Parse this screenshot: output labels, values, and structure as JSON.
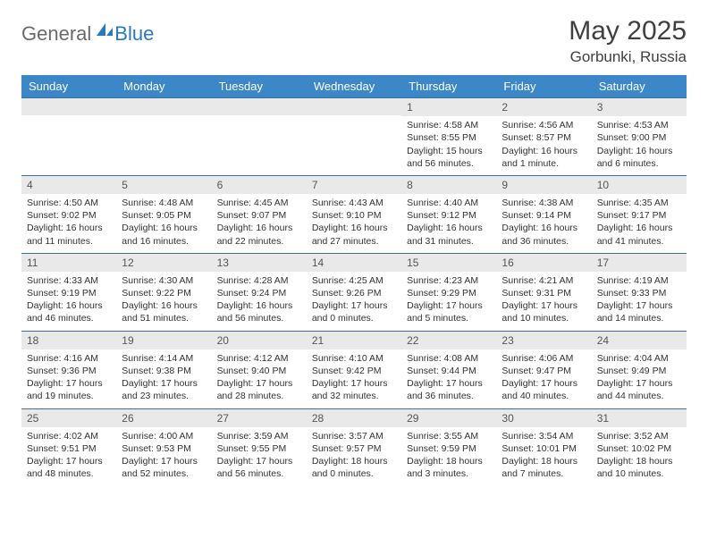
{
  "logo": {
    "part1": "General",
    "part2": "Blue"
  },
  "title": "May 2025",
  "location": "Gorbunki, Russia",
  "colors": {
    "header_bg": "#3b87c8",
    "header_fg": "#ffffff",
    "daynum_bg": "#e9e9e9",
    "row_border": "#3b6fa0",
    "logo_gray": "#6a6a6a",
    "logo_blue": "#2a7ab8",
    "text": "#333333"
  },
  "dayNames": [
    "Sunday",
    "Monday",
    "Tuesday",
    "Wednesday",
    "Thursday",
    "Friday",
    "Saturday"
  ],
  "weeks": [
    [
      null,
      null,
      null,
      null,
      {
        "d": "1",
        "sr": "4:58 AM",
        "ss": "8:55 PM",
        "dl": "15 hours and 56 minutes."
      },
      {
        "d": "2",
        "sr": "4:56 AM",
        "ss": "8:57 PM",
        "dl": "16 hours and 1 minute."
      },
      {
        "d": "3",
        "sr": "4:53 AM",
        "ss": "9:00 PM",
        "dl": "16 hours and 6 minutes."
      }
    ],
    [
      {
        "d": "4",
        "sr": "4:50 AM",
        "ss": "9:02 PM",
        "dl": "16 hours and 11 minutes."
      },
      {
        "d": "5",
        "sr": "4:48 AM",
        "ss": "9:05 PM",
        "dl": "16 hours and 16 minutes."
      },
      {
        "d": "6",
        "sr": "4:45 AM",
        "ss": "9:07 PM",
        "dl": "16 hours and 22 minutes."
      },
      {
        "d": "7",
        "sr": "4:43 AM",
        "ss": "9:10 PM",
        "dl": "16 hours and 27 minutes."
      },
      {
        "d": "8",
        "sr": "4:40 AM",
        "ss": "9:12 PM",
        "dl": "16 hours and 31 minutes."
      },
      {
        "d": "9",
        "sr": "4:38 AM",
        "ss": "9:14 PM",
        "dl": "16 hours and 36 minutes."
      },
      {
        "d": "10",
        "sr": "4:35 AM",
        "ss": "9:17 PM",
        "dl": "16 hours and 41 minutes."
      }
    ],
    [
      {
        "d": "11",
        "sr": "4:33 AM",
        "ss": "9:19 PM",
        "dl": "16 hours and 46 minutes."
      },
      {
        "d": "12",
        "sr": "4:30 AM",
        "ss": "9:22 PM",
        "dl": "16 hours and 51 minutes."
      },
      {
        "d": "13",
        "sr": "4:28 AM",
        "ss": "9:24 PM",
        "dl": "16 hours and 56 minutes."
      },
      {
        "d": "14",
        "sr": "4:25 AM",
        "ss": "9:26 PM",
        "dl": "17 hours and 0 minutes."
      },
      {
        "d": "15",
        "sr": "4:23 AM",
        "ss": "9:29 PM",
        "dl": "17 hours and 5 minutes."
      },
      {
        "d": "16",
        "sr": "4:21 AM",
        "ss": "9:31 PM",
        "dl": "17 hours and 10 minutes."
      },
      {
        "d": "17",
        "sr": "4:19 AM",
        "ss": "9:33 PM",
        "dl": "17 hours and 14 minutes."
      }
    ],
    [
      {
        "d": "18",
        "sr": "4:16 AM",
        "ss": "9:36 PM",
        "dl": "17 hours and 19 minutes."
      },
      {
        "d": "19",
        "sr": "4:14 AM",
        "ss": "9:38 PM",
        "dl": "17 hours and 23 minutes."
      },
      {
        "d": "20",
        "sr": "4:12 AM",
        "ss": "9:40 PM",
        "dl": "17 hours and 28 minutes."
      },
      {
        "d": "21",
        "sr": "4:10 AM",
        "ss": "9:42 PM",
        "dl": "17 hours and 32 minutes."
      },
      {
        "d": "22",
        "sr": "4:08 AM",
        "ss": "9:44 PM",
        "dl": "17 hours and 36 minutes."
      },
      {
        "d": "23",
        "sr": "4:06 AM",
        "ss": "9:47 PM",
        "dl": "17 hours and 40 minutes."
      },
      {
        "d": "24",
        "sr": "4:04 AM",
        "ss": "9:49 PM",
        "dl": "17 hours and 44 minutes."
      }
    ],
    [
      {
        "d": "25",
        "sr": "4:02 AM",
        "ss": "9:51 PM",
        "dl": "17 hours and 48 minutes."
      },
      {
        "d": "26",
        "sr": "4:00 AM",
        "ss": "9:53 PM",
        "dl": "17 hours and 52 minutes."
      },
      {
        "d": "27",
        "sr": "3:59 AM",
        "ss": "9:55 PM",
        "dl": "17 hours and 56 minutes."
      },
      {
        "d": "28",
        "sr": "3:57 AM",
        "ss": "9:57 PM",
        "dl": "18 hours and 0 minutes."
      },
      {
        "d": "29",
        "sr": "3:55 AM",
        "ss": "9:59 PM",
        "dl": "18 hours and 3 minutes."
      },
      {
        "d": "30",
        "sr": "3:54 AM",
        "ss": "10:01 PM",
        "dl": "18 hours and 7 minutes."
      },
      {
        "d": "31",
        "sr": "3:52 AM",
        "ss": "10:02 PM",
        "dl": "18 hours and 10 minutes."
      }
    ]
  ],
  "labels": {
    "sunrise": "Sunrise: ",
    "sunset": "Sunset: ",
    "daylight": "Daylight: "
  }
}
